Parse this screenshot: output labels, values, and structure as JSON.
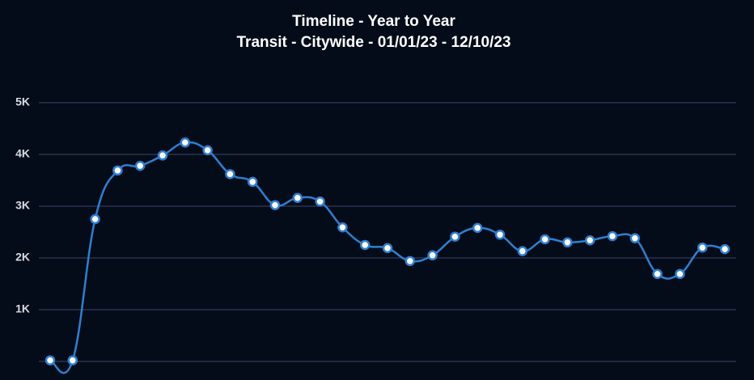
{
  "chart_data": {
    "type": "line",
    "title": "Timeline - Year to Year",
    "subtitle": "Transit - Citywide - 01/01/23 - 12/10/23",
    "categories": [
      null,
      null,
      null,
      null,
      null,
      null,
      null,
      null,
      null,
      null,
      null,
      null,
      null,
      null,
      null,
      null,
      null,
      null,
      null,
      null,
      null,
      null,
      null,
      null,
      null,
      null,
      null,
      null,
      null,
      null,
      null
    ],
    "series": [
      {
        "name": "Transit",
        "color": "#2f7fd0",
        "values": [
          20,
          20,
          2750,
          3690,
          3780,
          3980,
          4230,
          4080,
          3620,
          3470,
          3020,
          3160,
          3090,
          2590,
          2250,
          2190,
          1940,
          2050,
          2410,
          2580,
          2450,
          2130,
          2360,
          2300,
          2340,
          2420,
          2380,
          1690,
          1690,
          2200,
          2170
        ]
      }
    ],
    "ylim": [
      0,
      5000
    ],
    "yticks": [
      {
        "value": 1000,
        "label": "1K"
      },
      {
        "value": 2000,
        "label": "2K"
      },
      {
        "value": 3000,
        "label": "3K"
      },
      {
        "value": 4000,
        "label": "4K"
      },
      {
        "value": 5000,
        "label": "5K"
      }
    ],
    "grid": true
  }
}
